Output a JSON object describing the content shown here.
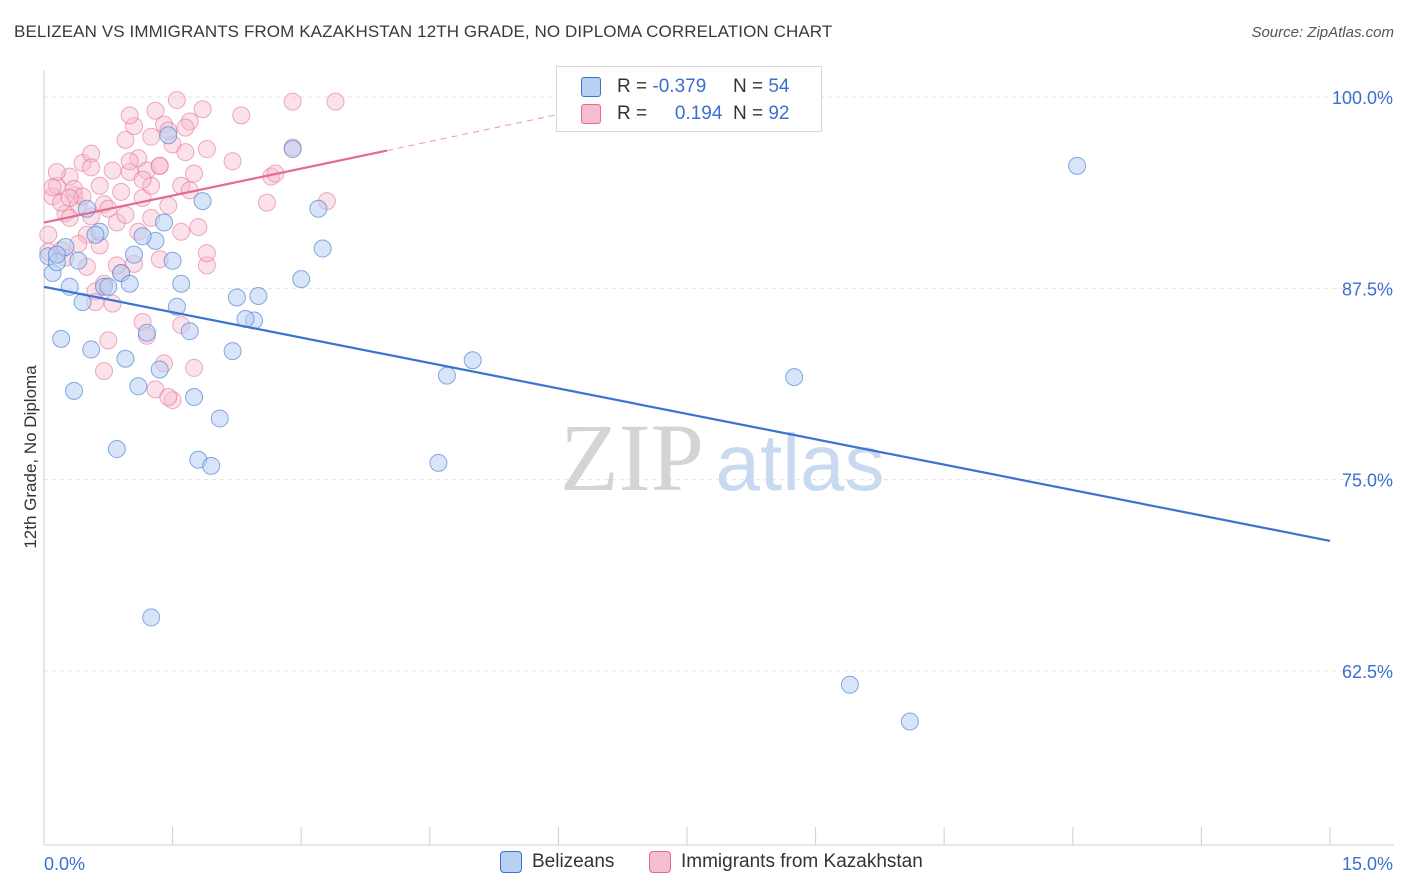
{
  "title": "BELIZEAN VS IMMIGRANTS FROM KAZAKHSTAN 12TH GRADE, NO DIPLOMA CORRELATION CHART",
  "source": "Source: ZipAtlas.com",
  "watermark": {
    "zip": "ZIP",
    "atlas": "atlas"
  },
  "colors": {
    "blue": "#3a74d0",
    "blue_fill": "#b8d0f2",
    "pink": "#e26a93",
    "pink_fill": "#f6bccf",
    "axis_label": "#3a6fd0"
  },
  "legend": {
    "r_label": "R =",
    "n_label": "N =",
    "belizeans": {
      "r": "-0.379",
      "n": "54"
    },
    "kazakhstan": {
      "r": "0.194",
      "n": "92"
    }
  },
  "chart_data": {
    "type": "scatter",
    "title": "BELIZEAN VS IMMIGRANTS FROM KAZAKHSTAN 12TH GRADE, NO DIPLOMA CORRELATION CHART",
    "xlabel": "",
    "ylabel": "12th Grade, No Diploma",
    "xlim": [
      0,
      15
    ],
    "ylim": [
      50.5,
      101.5
    ],
    "x_tick_labels": [
      "0.0%",
      "15.0%"
    ],
    "y_tick_values": [
      100,
      87.5,
      75,
      62.5
    ],
    "y_tick_labels": [
      "100.0%",
      "87.5%",
      "75.0%",
      "62.5%"
    ],
    "grid": "horizontal-dashed",
    "legend_position": "top-center",
    "series": [
      {
        "name": "Belizeans",
        "color": "#3a74d0",
        "trend": {
          "x": [
            0,
            15
          ],
          "y": [
            87.6,
            71.0
          ]
        },
        "points": [
          [
            0.05,
            89.6
          ],
          [
            0.1,
            88.5
          ],
          [
            0.15,
            89.2
          ],
          [
            0.2,
            84.2
          ],
          [
            0.25,
            90.2
          ],
          [
            0.3,
            87.6
          ],
          [
            0.35,
            80.8
          ],
          [
            0.4,
            89.3
          ],
          [
            0.5,
            92.7
          ],
          [
            0.55,
            83.5
          ],
          [
            0.65,
            91.2
          ],
          [
            0.7,
            87.6
          ],
          [
            0.75,
            87.6
          ],
          [
            0.85,
            77.0
          ],
          [
            0.9,
            88.5
          ],
          [
            0.95,
            82.9
          ],
          [
            1.05,
            89.7
          ],
          [
            1.1,
            81.1
          ],
          [
            1.2,
            84.6
          ],
          [
            1.3,
            90.6
          ],
          [
            1.25,
            66.0
          ],
          [
            1.35,
            82.2
          ],
          [
            1.4,
            91.8
          ],
          [
            1.45,
            97.5
          ],
          [
            1.5,
            89.3
          ],
          [
            1.55,
            86.3
          ],
          [
            1.6,
            87.8
          ],
          [
            1.7,
            84.7
          ],
          [
            1.75,
            80.4
          ],
          [
            1.8,
            76.3
          ],
          [
            1.85,
            93.2
          ],
          [
            1.95,
            75.9
          ],
          [
            2.05,
            79.0
          ],
          [
            2.2,
            83.4
          ],
          [
            2.25,
            86.9
          ],
          [
            2.45,
            85.4
          ],
          [
            2.5,
            87.0
          ],
          [
            2.9,
            96.6
          ],
          [
            3.0,
            88.1
          ],
          [
            3.2,
            92.7
          ],
          [
            3.25,
            90.1
          ],
          [
            4.7,
            81.8
          ],
          [
            4.6,
            76.1
          ],
          [
            5.0,
            82.8
          ],
          [
            8.75,
            81.7
          ],
          [
            9.4,
            61.6
          ],
          [
            10.1,
            59.2
          ],
          [
            12.05,
            95.5
          ],
          [
            0.15,
            89.7
          ],
          [
            0.6,
            91.0
          ],
          [
            1.0,
            87.8
          ],
          [
            0.45,
            86.6
          ],
          [
            2.35,
            85.5
          ],
          [
            1.15,
            90.9
          ]
        ]
      },
      {
        "name": "Immigrants from Kazakhstan",
        "color": "#e26a93",
        "trend": {
          "x": [
            0,
            4.0
          ],
          "y": [
            91.8,
            96.5
          ]
        },
        "trend_dashed": {
          "x": [
            4.0,
            6.2
          ],
          "y": [
            96.5,
            99.1
          ]
        },
        "points": [
          [
            0.05,
            91.0
          ],
          [
            0.1,
            93.5
          ],
          [
            0.15,
            94.2
          ],
          [
            0.2,
            90.0
          ],
          [
            0.25,
            92.4
          ],
          [
            0.3,
            94.8
          ],
          [
            0.35,
            93.6
          ],
          [
            0.4,
            92.9
          ],
          [
            0.45,
            95.7
          ],
          [
            0.5,
            91.0
          ],
          [
            0.55,
            96.3
          ],
          [
            0.6,
            87.3
          ],
          [
            0.65,
            94.2
          ],
          [
            0.7,
            93.0
          ],
          [
            0.75,
            92.7
          ],
          [
            0.8,
            95.2
          ],
          [
            0.85,
            91.8
          ],
          [
            0.9,
            93.8
          ],
          [
            0.95,
            97.2
          ],
          [
            1.0,
            95.1
          ],
          [
            1.05,
            98.1
          ],
          [
            1.1,
            96.0
          ],
          [
            1.15,
            93.4
          ],
          [
            1.2,
            95.2
          ],
          [
            1.25,
            97.4
          ],
          [
            1.3,
            99.1
          ],
          [
            1.35,
            95.5
          ],
          [
            1.4,
            98.2
          ],
          [
            1.45,
            92.9
          ],
          [
            1.5,
            96.9
          ],
          [
            1.55,
            99.8
          ],
          [
            1.6,
            94.2
          ],
          [
            1.65,
            96.4
          ],
          [
            1.7,
            98.4
          ],
          [
            1.75,
            95.0
          ],
          [
            1.8,
            91.5
          ],
          [
            1.85,
            99.2
          ],
          [
            1.9,
            89.0
          ],
          [
            1.15,
            85.3
          ],
          [
            1.2,
            84.4
          ],
          [
            1.3,
            80.9
          ],
          [
            1.4,
            82.6
          ],
          [
            0.75,
            84.1
          ],
          [
            0.7,
            82.1
          ],
          [
            1.05,
            89.1
          ],
          [
            0.9,
            88.5
          ],
          [
            0.5,
            88.9
          ],
          [
            0.6,
            86.6
          ],
          [
            1.5,
            80.2
          ],
          [
            2.2,
            95.8
          ],
          [
            2.3,
            98.8
          ],
          [
            2.6,
            93.1
          ],
          [
            2.65,
            94.8
          ],
          [
            2.9,
            96.7
          ],
          [
            3.3,
            93.2
          ],
          [
            3.4,
            99.7
          ],
          [
            2.9,
            99.7
          ],
          [
            1.6,
            85.1
          ],
          [
            1.75,
            82.3
          ],
          [
            0.8,
            86.5
          ],
          [
            1.35,
            89.4
          ],
          [
            0.2,
            93.1
          ],
          [
            0.3,
            92.1
          ],
          [
            0.4,
            90.4
          ],
          [
            1.0,
            98.8
          ],
          [
            1.1,
            91.2
          ],
          [
            1.25,
            94.2
          ],
          [
            1.45,
            80.4
          ],
          [
            0.15,
            95.1
          ],
          [
            0.25,
            89.5
          ],
          [
            0.35,
            94.0
          ],
          [
            0.45,
            93.5
          ],
          [
            0.55,
            92.2
          ],
          [
            0.65,
            90.3
          ],
          [
            0.85,
            89.0
          ],
          [
            0.95,
            92.3
          ],
          [
            1.15,
            94.6
          ],
          [
            1.25,
            92.1
          ],
          [
            1.35,
            95.5
          ],
          [
            1.6,
            91.2
          ],
          [
            1.7,
            93.9
          ],
          [
            1.9,
            89.8
          ],
          [
            0.05,
            89.9
          ],
          [
            0.1,
            94.1
          ],
          [
            0.3,
            93.4
          ],
          [
            0.55,
            95.4
          ],
          [
            0.7,
            87.8
          ],
          [
            1.0,
            95.8
          ],
          [
            1.45,
            97.8
          ],
          [
            1.9,
            96.6
          ],
          [
            1.65,
            98.0
          ],
          [
            2.7,
            95.0
          ]
        ]
      }
    ]
  }
}
